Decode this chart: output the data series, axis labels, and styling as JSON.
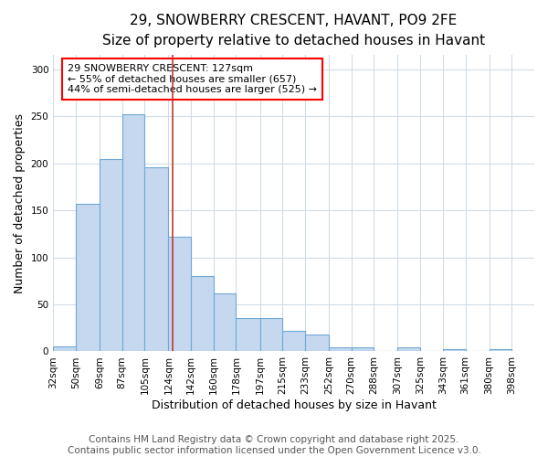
{
  "title_line1": "29, SNOWBERRY CRESCENT, HAVANT, PO9 2FE",
  "title_line2": "Size of property relative to detached houses in Havant",
  "xlabel": "Distribution of detached houses by size in Havant",
  "ylabel": "Number of detached properties",
  "bar_left_edges": [
    32,
    50,
    69,
    87,
    105,
    124,
    142,
    160,
    178,
    197,
    215,
    233,
    252,
    270,
    288,
    307,
    325,
    343,
    361,
    380
  ],
  "bar_widths": [
    18,
    19,
    18,
    18,
    19,
    18,
    18,
    18,
    19,
    18,
    18,
    19,
    18,
    18,
    19,
    18,
    18,
    18,
    19,
    18
  ],
  "bar_heights": [
    5,
    157,
    205,
    252,
    196,
    122,
    80,
    62,
    35,
    35,
    22,
    18,
    4,
    4,
    0,
    4,
    0,
    2,
    0,
    2
  ],
  "bar_color": "#c5d8ef",
  "bar_edgecolor": "#6fa8d6",
  "background_color": "#ffffff",
  "grid_color": "#d0dce8",
  "vline_x": 127,
  "vline_color": "#c0392b",
  "annotation_text": "29 SNOWBERRY CRESCENT: 127sqm\n← 55% of detached houses are smaller (657)\n44% of semi-detached houses are larger (525) →",
  "ylim": [
    0,
    315
  ],
  "yticks": [
    0,
    50,
    100,
    150,
    200,
    250,
    300
  ],
  "xtick_labels": [
    "32sqm",
    "50sqm",
    "69sqm",
    "87sqm",
    "105sqm",
    "124sqm",
    "142sqm",
    "160sqm",
    "178sqm",
    "197sqm",
    "215sqm",
    "233sqm",
    "252sqm",
    "270sqm",
    "288sqm",
    "307sqm",
    "325sqm",
    "343sqm",
    "361sqm",
    "380sqm",
    "398sqm"
  ],
  "xtick_positions": [
    32,
    50,
    69,
    87,
    105,
    124,
    142,
    160,
    178,
    197,
    215,
    233,
    252,
    270,
    288,
    307,
    325,
    343,
    361,
    380,
    398
  ],
  "footer_text": "Contains HM Land Registry data © Crown copyright and database right 2025.\nContains public sector information licensed under the Open Government Licence v3.0.",
  "title_fontsize": 11,
  "subtitle_fontsize": 10,
  "tick_fontsize": 7.5,
  "label_fontsize": 9,
  "footer_fontsize": 7.5
}
